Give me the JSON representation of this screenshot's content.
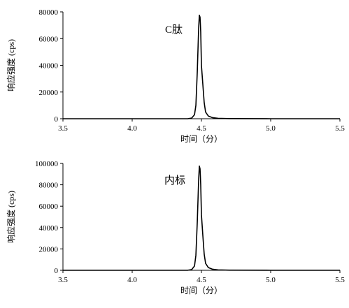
{
  "chart_data": [
    {
      "type": "line",
      "annotation": "C肽",
      "xlabel": "时间（分）",
      "ylabel": "响应强度 (cps)",
      "xlim": [
        3.5,
        5.5
      ],
      "ylim": [
        0,
        80000
      ],
      "xticks": [
        "3.5",
        "4.0",
        "4.5",
        "5.0",
        "5.5"
      ],
      "yticks": [
        "0",
        "20000",
        "40000",
        "60000",
        "80000"
      ],
      "grid": false,
      "legend": "none",
      "series": [
        {
          "color": "#000000",
          "x": [
            3.5,
            4.4,
            4.43,
            4.45,
            4.46,
            4.47,
            4.48,
            4.485,
            4.49,
            4.495,
            4.5,
            4.51,
            4.52,
            4.53,
            4.55,
            4.58,
            4.62,
            4.7,
            5.0,
            5.5
          ],
          "y": [
            0,
            0,
            500,
            3000,
            10000,
            35000,
            68000,
            77500,
            76000,
            65000,
            40000,
            26000,
            12000,
            5000,
            2000,
            800,
            300,
            100,
            0,
            0
          ]
        }
      ]
    },
    {
      "type": "line",
      "annotation": "内标",
      "xlabel": "时间（分）",
      "ylabel": "响应强度 (cps)",
      "xlim": [
        3.5,
        5.5
      ],
      "ylim": [
        0,
        100000
      ],
      "xticks": [
        "3.5",
        "4.0",
        "4.5",
        "5.0",
        "5.5"
      ],
      "yticks": [
        "0",
        "20000",
        "40000",
        "60000",
        "80000",
        "100000"
      ],
      "grid": false,
      "legend": "none",
      "series": [
        {
          "color": "#000000",
          "x": [
            3.5,
            4.4,
            4.43,
            4.45,
            4.46,
            4.47,
            4.48,
            4.485,
            4.49,
            4.495,
            4.5,
            4.51,
            4.52,
            4.53,
            4.55,
            4.58,
            4.62,
            4.7,
            5.0,
            5.5
          ],
          "y": [
            0,
            0,
            700,
            4000,
            14000,
            45000,
            85000,
            97500,
            95000,
            80000,
            52000,
            33000,
            15000,
            6500,
            2500,
            1000,
            400,
            150,
            0,
            0
          ]
        }
      ]
    }
  ]
}
